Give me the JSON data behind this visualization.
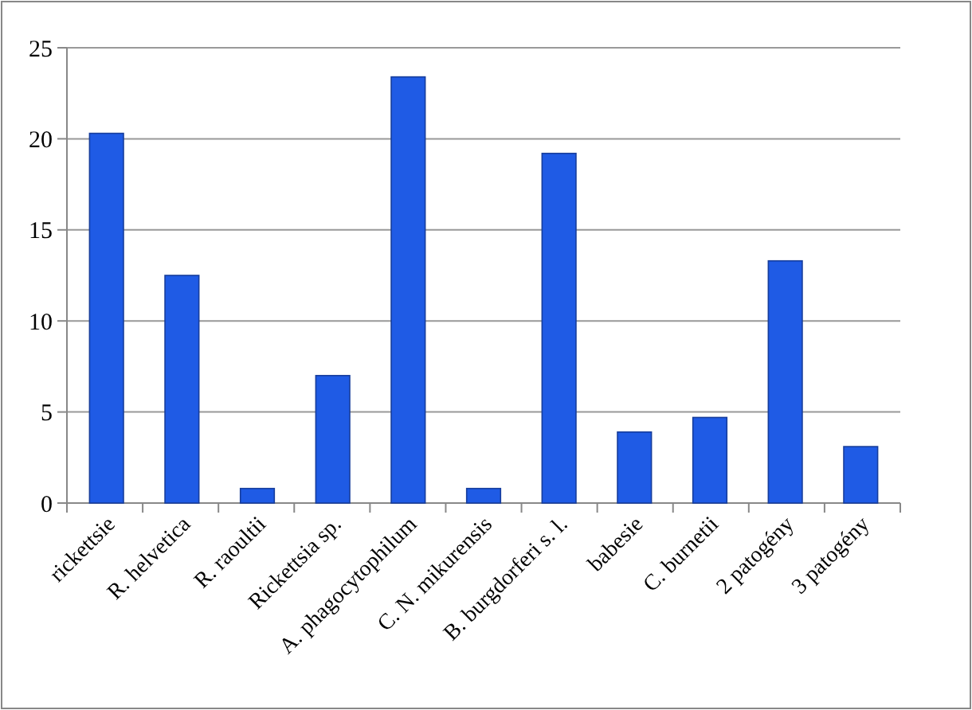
{
  "chart_data": {
    "type": "bar",
    "categories": [
      "rickettsie",
      "R. helvetica",
      "R. raoultii",
      "Rickettsia sp.",
      "A. phagocytophilum",
      "C. N. mikurensis",
      "B. burgdorferi s. l.",
      "babesie",
      "C. burnetii",
      "2 patogény",
      "3 patogény"
    ],
    "values": [
      20.3,
      12.5,
      0.8,
      7.0,
      23.4,
      0.8,
      19.2,
      3.9,
      4.7,
      13.3,
      3.1
    ],
    "color": "#1f5be5",
    "ylim": [
      0,
      25
    ],
    "yticks": [
      0,
      5,
      10,
      15,
      20,
      25
    ],
    "grid": "y"
  }
}
